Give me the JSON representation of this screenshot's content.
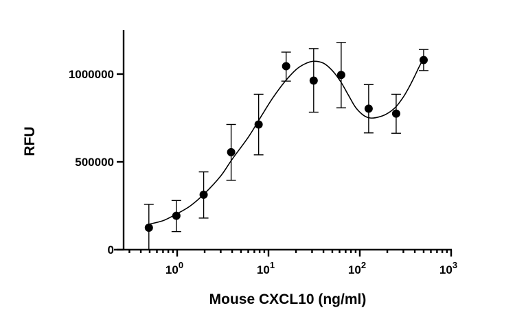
{
  "chart_data": {
    "type": "scatter",
    "title": "",
    "xlabel": "Mouse CXCL10 (ng/ml)",
    "ylabel": "RFU",
    "xscale": "log10",
    "xlim": [
      0.25,
      1000
    ],
    "ylim": [
      0,
      1250000
    ],
    "x_ticks": [
      {
        "value": 1,
        "base": "10",
        "exp": "0"
      },
      {
        "value": 10,
        "base": "10",
        "exp": "1"
      },
      {
        "value": 100,
        "base": "10",
        "exp": "2"
      },
      {
        "value": 1000,
        "base": "10",
        "exp": "3"
      }
    ],
    "y_ticks": [
      {
        "value": 0,
        "label": "0"
      },
      {
        "value": 500000,
        "label": "500000"
      },
      {
        "value": 1000000,
        "label": "1000000"
      }
    ],
    "series": [
      {
        "name": "RFU",
        "x": [
          0.49,
          0.98,
          1.95,
          3.9,
          7.8,
          15.6,
          31.25,
          62.5,
          125,
          250,
          500
        ],
        "y": [
          125000,
          193000,
          313000,
          555000,
          713000,
          1045000,
          963000,
          995000,
          803000,
          775000,
          1080000
        ],
        "err_low": [
          235000,
          290000,
          443000,
          713000,
          885000,
          1125000,
          1145000,
          1180000,
          940000,
          885000,
          1140000
        ],
        "err_high": [
          258000,
          280000,
          443000,
          713000,
          885000,
          1125000,
          1145000,
          1180000,
          940000,
          885000,
          1140000
        ],
        "err_lower_bound": [
          0,
          103000,
          180000,
          395000,
          540000,
          960000,
          783000,
          808000,
          665000,
          663000,
          1020000
        ]
      }
    ],
    "fit_curve": {
      "x": [
        0.49,
        0.7,
        1,
        1.4,
        2,
        3,
        4,
        6,
        8,
        11,
        15,
        20,
        25,
        31,
        40,
        50,
        62,
        75,
        90,
        110,
        130,
        160,
        200,
        250,
        300,
        350,
        400,
        450,
        500
      ],
      "y": [
        145000,
        165000,
        205000,
        250000,
        320000,
        420000,
        515000,
        640000,
        745000,
        860000,
        955000,
        1025000,
        1058000,
        1073000,
        1062000,
        1020000,
        955000,
        880000,
        810000,
        765000,
        750000,
        755000,
        775000,
        815000,
        870000,
        930000,
        990000,
        1045000,
        1090000
      ]
    },
    "grid": false,
    "legend": "none"
  }
}
